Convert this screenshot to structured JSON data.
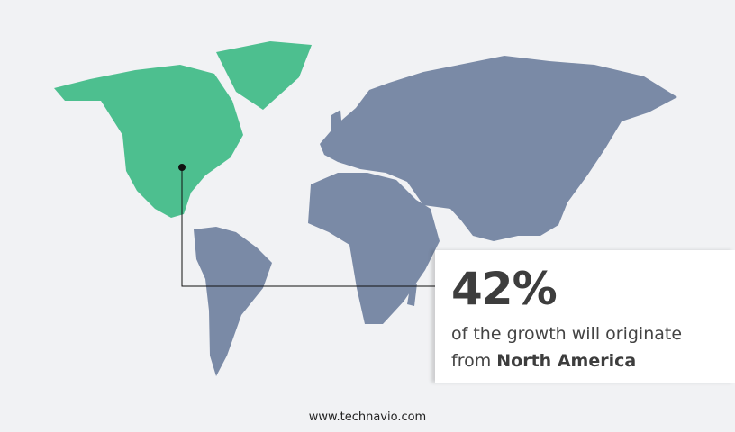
{
  "colors": {
    "background": "#f1f2f4",
    "highlight_region": "#4dbf8f",
    "other_regions": "#7a8aa6",
    "pointer": "#111111"
  },
  "highlight": {
    "region": "North America"
  },
  "callout": {
    "percent": "42%",
    "line1": "of the growth will originate",
    "line2_prefix": "from",
    "line2_region": "North America"
  },
  "footer": {
    "url": "www.technavio.com"
  }
}
